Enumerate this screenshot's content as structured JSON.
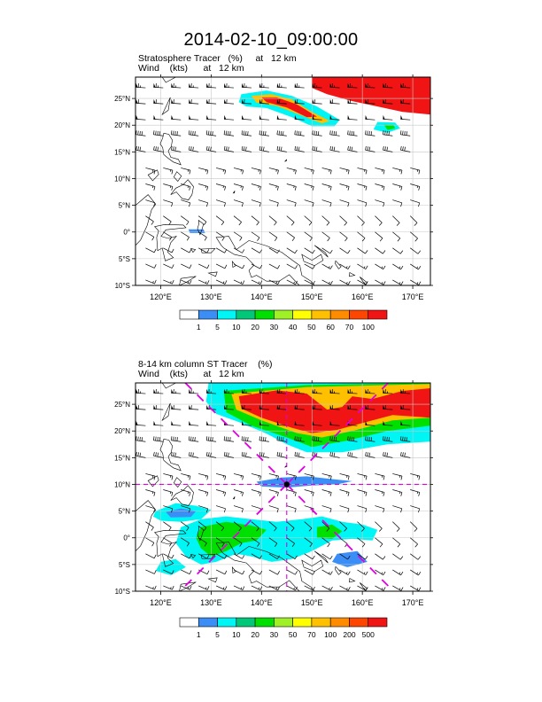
{
  "title": "2014-02-10_09:00:00",
  "colors": {
    "land_outline": "#000000",
    "grid": "#c8c8c8",
    "marker": "#e000e0",
    "wind": "#000000"
  },
  "chart_data": [
    {
      "type": "heatmap",
      "title_line1": "Stratosphere Tracer   (%)     at   12 km",
      "title_line2": "Wind    (kts)      at   12 km",
      "xlim": [
        115,
        173.5
      ],
      "ylim": [
        -10,
        29
      ],
      "x_ticks": [
        {
          "value": 120,
          "label": "120°E"
        },
        {
          "value": 130,
          "label": "130°E"
        },
        {
          "value": 140,
          "label": "140°E"
        },
        {
          "value": 150,
          "label": "150°E"
        },
        {
          "value": 160,
          "label": "160°E"
        },
        {
          "value": 170,
          "label": "170°E"
        }
      ],
      "y_ticks": [
        {
          "value": 25,
          "label": "25°N"
        },
        {
          "value": 20,
          "label": "20°N"
        },
        {
          "value": 15,
          "label": "15°N"
        },
        {
          "value": 10,
          "label": "10°N"
        },
        {
          "value": 5,
          "label": "5°N"
        },
        {
          "value": 0,
          "label": "0°"
        },
        {
          "value": -5,
          "label": "5°S"
        },
        {
          "value": -10,
          "label": "10°S"
        }
      ],
      "colorbar": {
        "levels": [
          "1",
          "5",
          "10",
          "20",
          "30",
          "40",
          "50",
          "60",
          "70",
          "100"
        ],
        "colors": [
          "#ffffff",
          "#3a8ef6",
          "#00f5f5",
          "#00c878",
          "#00e000",
          "#a0f028",
          "#ffff00",
          "#ffc000",
          "#ff8c00",
          "#ff4600",
          "#f01414"
        ]
      },
      "grid": true,
      "regions": [
        {
          "name": "stratospheric-air-northeast",
          "level_index": 10,
          "points": [
            [
              150,
              29
            ],
            [
              173.5,
              29
            ],
            [
              173.5,
              22
            ],
            [
              168,
              22.5
            ],
            [
              163,
              23.5
            ],
            [
              158,
              24.5
            ],
            [
              153,
              25.8
            ],
            [
              150,
              27
            ]
          ]
        },
        {
          "name": "tongue-outer",
          "level_index": 2,
          "points": [
            [
              136,
              25.8
            ],
            [
              141,
              26.5
            ],
            [
              146,
              25.5
            ],
            [
              151,
              23.5
            ],
            [
              155.5,
              21
            ],
            [
              154.5,
              19.8
            ],
            [
              150,
              19.8
            ],
            [
              146,
              21.5
            ],
            [
              141,
              23.2
            ],
            [
              137,
              23.5
            ],
            [
              135.5,
              24.3
            ]
          ]
        },
        {
          "name": "tongue-mid",
          "level_index": 7,
          "points": [
            [
              138,
              25.5
            ],
            [
              142,
              25.8
            ],
            [
              146,
              24.8
            ],
            [
              150,
              22.5
            ],
            [
              153.5,
              20.8
            ],
            [
              152,
              20.3
            ],
            [
              148,
              21.8
            ],
            [
              143,
              23.6
            ],
            [
              139,
              24.2
            ]
          ]
        },
        {
          "name": "tongue-core",
          "level_index": 10,
          "points": [
            [
              140,
              25.2
            ],
            [
              143,
              25.2
            ],
            [
              147,
              23.9
            ],
            [
              151,
              21.6
            ],
            [
              149,
              21.5
            ],
            [
              145,
              23.3
            ],
            [
              141,
              24.3
            ]
          ]
        },
        {
          "name": "east-blob",
          "level_index": 2,
          "points": [
            [
              163,
              20.6
            ],
            [
              166.5,
              20.5
            ],
            [
              167.5,
              19.4
            ],
            [
              165,
              18.6
            ],
            [
              162.2,
              19.2
            ]
          ]
        },
        {
          "name": "east-blob-core",
          "level_index": 4,
          "points": [
            [
              164.3,
              20.1
            ],
            [
              166.2,
              20
            ],
            [
              166.5,
              19.4
            ],
            [
              165,
              19.1
            ]
          ]
        },
        {
          "name": "small-tracer-0n",
          "level_index": 1,
          "points": [
            [
              125.5,
              0.5
            ],
            [
              128.5,
              0.5
            ],
            [
              128.8,
              -0.2
            ],
            [
              125.8,
              -0.2
            ]
          ]
        }
      ],
      "marker": null
    },
    {
      "type": "heatmap",
      "title_line1": "8-14 km column ST Tracer    (%)",
      "title_line2": "Wind    (kts)      at   12 km",
      "xlim": [
        115,
        173.5
      ],
      "ylim": [
        -10,
        29
      ],
      "x_ticks": [
        {
          "value": 120,
          "label": "120°E"
        },
        {
          "value": 130,
          "label": "130°E"
        },
        {
          "value": 140,
          "label": "140°E"
        },
        {
          "value": 150,
          "label": "150°E"
        },
        {
          "value": 160,
          "label": "160°E"
        },
        {
          "value": 170,
          "label": "170°E"
        }
      ],
      "y_ticks": [
        {
          "value": 25,
          "label": "25°N"
        },
        {
          "value": 20,
          "label": "20°N"
        },
        {
          "value": 15,
          "label": "15°N"
        },
        {
          "value": 10,
          "label": "10°N"
        },
        {
          "value": 5,
          "label": "5°N"
        },
        {
          "value": 0,
          "label": "0°"
        },
        {
          "value": -5,
          "label": "5°S"
        },
        {
          "value": -10,
          "label": "10°S"
        }
      ],
      "colorbar": {
        "levels": [
          "1",
          "5",
          "10",
          "20",
          "30",
          "50",
          "70",
          "100",
          "200",
          "500"
        ],
        "colors": [
          "#ffffff",
          "#3a8ef6",
          "#00f5f5",
          "#00c878",
          "#00e000",
          "#a0f028",
          "#ffff00",
          "#ffc000",
          "#ff8c00",
          "#ff4600",
          "#f01414"
        ]
      },
      "grid": true,
      "regions": [
        {
          "name": "band-outer",
          "level_index": 2,
          "points": [
            [
              129.5,
              29
            ],
            [
              173.5,
              29
            ],
            [
              173.5,
              18
            ],
            [
              165,
              17.5
            ],
            [
              156,
              16
            ],
            [
              149,
              16
            ],
            [
              145,
              17.5
            ],
            [
              141,
              19.5
            ],
            [
              136,
              21.5
            ],
            [
              131,
              23.2
            ],
            [
              129,
              25.5
            ]
          ]
        },
        {
          "name": "band-green",
          "level_index": 4,
          "points": [
            [
              132.5,
              27.5
            ],
            [
              149,
              28.6
            ],
            [
              173.5,
              29
            ],
            [
              173.5,
              21
            ],
            [
              165,
              20
            ],
            [
              157,
              18.2
            ],
            [
              150,
              17
            ],
            [
              145,
              18.8
            ],
            [
              138,
              21
            ],
            [
              133,
              23.5
            ]
          ]
        },
        {
          "name": "band-yellow",
          "level_index": 7,
          "points": [
            [
              134,
              27
            ],
            [
              149,
              28.2
            ],
            [
              173.5,
              28.8
            ],
            [
              173.5,
              22.5
            ],
            [
              166,
              22
            ],
            [
              158,
              20
            ],
            [
              152,
              18.8
            ],
            [
              147,
              19.6
            ],
            [
              140,
              22
            ],
            [
              135,
              24
            ]
          ]
        },
        {
          "name": "band-core",
          "level_index": 10,
          "points": [
            [
              135.5,
              26.5
            ],
            [
              143,
              27.6
            ],
            [
              149,
              27
            ],
            [
              153,
              24
            ],
            [
              156,
              24.5
            ],
            [
              158,
              26.5
            ],
            [
              162,
              26
            ],
            [
              168,
              27.5
            ],
            [
              173.5,
              28
            ],
            [
              173.5,
              22.5
            ],
            [
              166,
              23
            ],
            [
              160,
              21.5
            ],
            [
              155,
              20.2
            ],
            [
              150,
              19.6
            ],
            [
              146,
              20.6
            ],
            [
              140,
              22.5
            ],
            [
              136,
              24.2
            ]
          ]
        },
        {
          "name": "blue-band-10n",
          "level_index": 1,
          "points": [
            [
              139,
              10.5
            ],
            [
              144,
              11.3
            ],
            [
              149,
              11.5
            ],
            [
              154,
              11
            ],
            [
              158,
              10.6
            ],
            [
              155,
              10
            ],
            [
              150,
              9.8
            ],
            [
              145,
              9.4
            ],
            [
              140,
              9.6
            ]
          ]
        },
        {
          "name": "philippines-sea-blob",
          "level_index": 2,
          "points": [
            [
              119,
              5
            ],
            [
              123,
              6.5
            ],
            [
              127,
              6
            ],
            [
              130,
              5.2
            ],
            [
              128,
              3.5
            ],
            [
              124,
              3
            ],
            [
              120,
              3.2
            ],
            [
              118.5,
              4
            ]
          ]
        },
        {
          "name": "philippines-sea-blob-core",
          "level_index": 1,
          "points": [
            [
              121,
              4.8
            ],
            [
              124,
              5.5
            ],
            [
              127,
              5
            ],
            [
              126,
              3.9
            ],
            [
              122,
              3.8
            ]
          ]
        },
        {
          "name": "central-cluster-outer",
          "level_index": 2,
          "points": [
            [
              124,
              2
            ],
            [
              128,
              3.5
            ],
            [
              133,
              4
            ],
            [
              138,
              3.5
            ],
            [
              143,
              3
            ],
            [
              148,
              3.5
            ],
            [
              152,
              4
            ],
            [
              156,
              3
            ],
            [
              160,
              2.5
            ],
            [
              163,
              1.5
            ],
            [
              162,
              -0.5
            ],
            [
              158,
              -0.2
            ],
            [
              154,
              -0.5
            ],
            [
              150,
              -2.5
            ],
            [
              146,
              -4
            ],
            [
              142,
              -4.5
            ],
            [
              138,
              -3.5
            ],
            [
              135,
              -3
            ],
            [
              131,
              -4.5
            ],
            [
              128,
              -5
            ],
            [
              125,
              -3.5
            ],
            [
              123,
              -1
            ]
          ]
        },
        {
          "name": "central-cluster-green",
          "level_index": 4,
          "points": [
            [
              128,
              2
            ],
            [
              133,
              3
            ],
            [
              138,
              2.3
            ],
            [
              141,
              1.5
            ],
            [
              139,
              -0.5
            ],
            [
              136,
              -1
            ],
            [
              133,
              -2.5
            ],
            [
              130,
              -3.5
            ],
            [
              128,
              -2
            ],
            [
              127,
              0
            ]
          ]
        },
        {
          "name": "east-cluster-green",
          "level_index": 4,
          "points": [
            [
              151,
              2
            ],
            [
              154,
              2.5
            ],
            [
              156,
              1.2
            ],
            [
              154,
              -0.2
            ],
            [
              151,
              0
            ]
          ]
        },
        {
          "name": "sw-blob",
          "level_index": 2,
          "points": [
            [
              120,
              -4.5
            ],
            [
              123,
              -4
            ],
            [
              125,
              -5.5
            ],
            [
              122,
              -7
            ],
            [
              119,
              -6.2
            ]
          ]
        },
        {
          "name": "se-blob",
          "level_index": 1,
          "points": [
            [
              155,
              -3
            ],
            [
              159,
              -2.5
            ],
            [
              161,
              -4.5
            ],
            [
              157,
              -5.5
            ],
            [
              154,
              -4.5
            ]
          ]
        }
      ],
      "marker": {
        "lon": 145,
        "lat": 10
      }
    }
  ]
}
